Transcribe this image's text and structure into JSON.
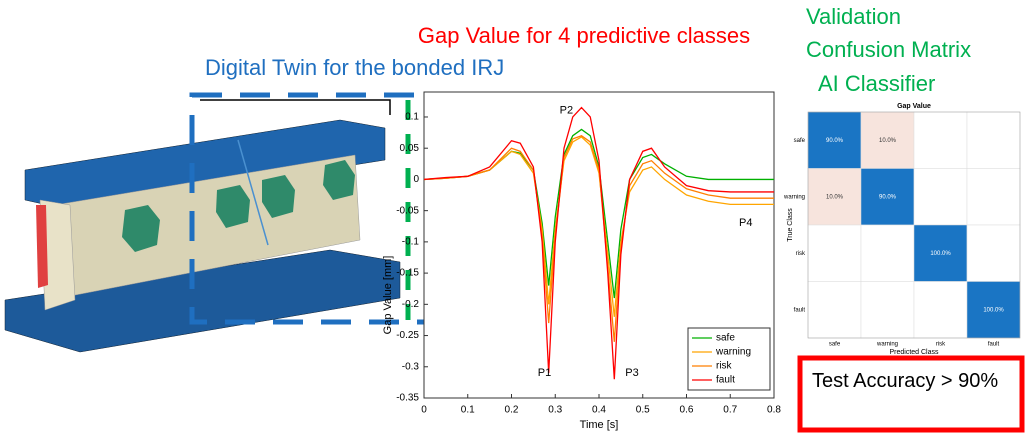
{
  "slide": {
    "left_title": "Digital Twin for the bonded IRJ",
    "center_title": "Gap Value for 4 predictive classes",
    "right_title": [
      "Validation",
      "Confusion Matrix",
      "AI Classifier"
    ],
    "accuracy": "Test Accuracy > 90%"
  },
  "chart_data": [
    {
      "type": "line",
      "xlabel": "Time [s]",
      "ylabel": "Gap Value [mm]",
      "x": [
        0,
        0.05,
        0.1,
        0.15,
        0.2,
        0.22,
        0.25,
        0.27,
        0.285,
        0.3,
        0.32,
        0.34,
        0.36,
        0.38,
        0.4,
        0.42,
        0.435,
        0.45,
        0.47,
        0.5,
        0.52,
        0.55,
        0.6,
        0.65,
        0.7,
        0.75,
        0.8
      ],
      "series": [
        {
          "name": "safe",
          "color": "#00b000",
          "values": [
            0,
            0.002,
            0.005,
            0.015,
            0.045,
            0.042,
            0.015,
            -0.07,
            -0.17,
            -0.06,
            0.04,
            0.07,
            0.08,
            0.07,
            0.02,
            -0.1,
            -0.19,
            -0.08,
            0.0,
            0.035,
            0.04,
            0.025,
            0.005,
            0.0,
            0.0,
            0.0,
            0.0
          ]
        },
        {
          "name": "warning",
          "color": "#ffa500",
          "values": [
            0,
            0.002,
            0.005,
            0.015,
            0.045,
            0.04,
            0.01,
            -0.08,
            -0.2,
            -0.08,
            0.03,
            0.06,
            0.068,
            0.055,
            0.01,
            -0.12,
            -0.22,
            -0.1,
            -0.02,
            0.015,
            0.02,
            0.0,
            -0.025,
            -0.035,
            -0.04,
            -0.04,
            -0.04
          ]
        },
        {
          "name": "risk",
          "color": "#ff7f00",
          "values": [
            0,
            0.002,
            0.005,
            0.015,
            0.05,
            0.045,
            0.015,
            -0.09,
            -0.23,
            -0.09,
            0.035,
            0.065,
            0.07,
            0.06,
            0.015,
            -0.14,
            -0.26,
            -0.11,
            -0.01,
            0.025,
            0.03,
            0.01,
            -0.015,
            -0.025,
            -0.03,
            -0.03,
            -0.03
          ]
        },
        {
          "name": "fault",
          "color": "#ff0000",
          "values": [
            0,
            0.003,
            0.005,
            0.02,
            0.062,
            0.058,
            0.02,
            -0.1,
            -0.31,
            -0.1,
            0.05,
            0.1,
            0.115,
            0.1,
            0.03,
            -0.15,
            -0.32,
            -0.12,
            0.0,
            0.045,
            0.05,
            0.02,
            -0.01,
            -0.018,
            -0.02,
            -0.02,
            -0.02
          ]
        }
      ],
      "xlim": [
        0,
        0.8
      ],
      "xticks": [
        0,
        0.1,
        0.2,
        0.3,
        0.4,
        0.5,
        0.6,
        0.7,
        0.8
      ],
      "ylim": [
        -0.35,
        0.14
      ],
      "yticks": [
        -0.35,
        -0.3,
        -0.25,
        -0.2,
        -0.15,
        -0.1,
        -0.05,
        0,
        0.05,
        0.1
      ],
      "legend": "lower right",
      "annotations": [
        {
          "text": "P1",
          "x": 0.26,
          "y": -0.31
        },
        {
          "text": "P2",
          "x": 0.31,
          "y": 0.11
        },
        {
          "text": "P3",
          "x": 0.46,
          "y": -0.31
        },
        {
          "text": "P4",
          "x": 0.72,
          "y": -0.07
        }
      ]
    },
    {
      "type": "heatmap",
      "title": "Gap Value",
      "xlabel": "Predicted Class",
      "ylabel": "True Class",
      "categories": [
        "safe",
        "warning",
        "risk",
        "fault"
      ],
      "values": [
        [
          90,
          10,
          0,
          0
        ],
        [
          10,
          90,
          0,
          0
        ],
        [
          0,
          0,
          100,
          0
        ],
        [
          0,
          0,
          0,
          100
        ]
      ],
      "value_labels": [
        [
          "90.0%",
          "10.0%",
          null,
          null
        ],
        [
          "10.0%",
          "90.0%",
          null,
          null
        ],
        [
          null,
          null,
          "100.0%",
          null
        ],
        [
          null,
          null,
          null,
          "100.0%"
        ]
      ],
      "colors": {
        "high": "#1a75c4",
        "low": "#f7e4dd",
        "zero": "#ffffff"
      }
    }
  ]
}
